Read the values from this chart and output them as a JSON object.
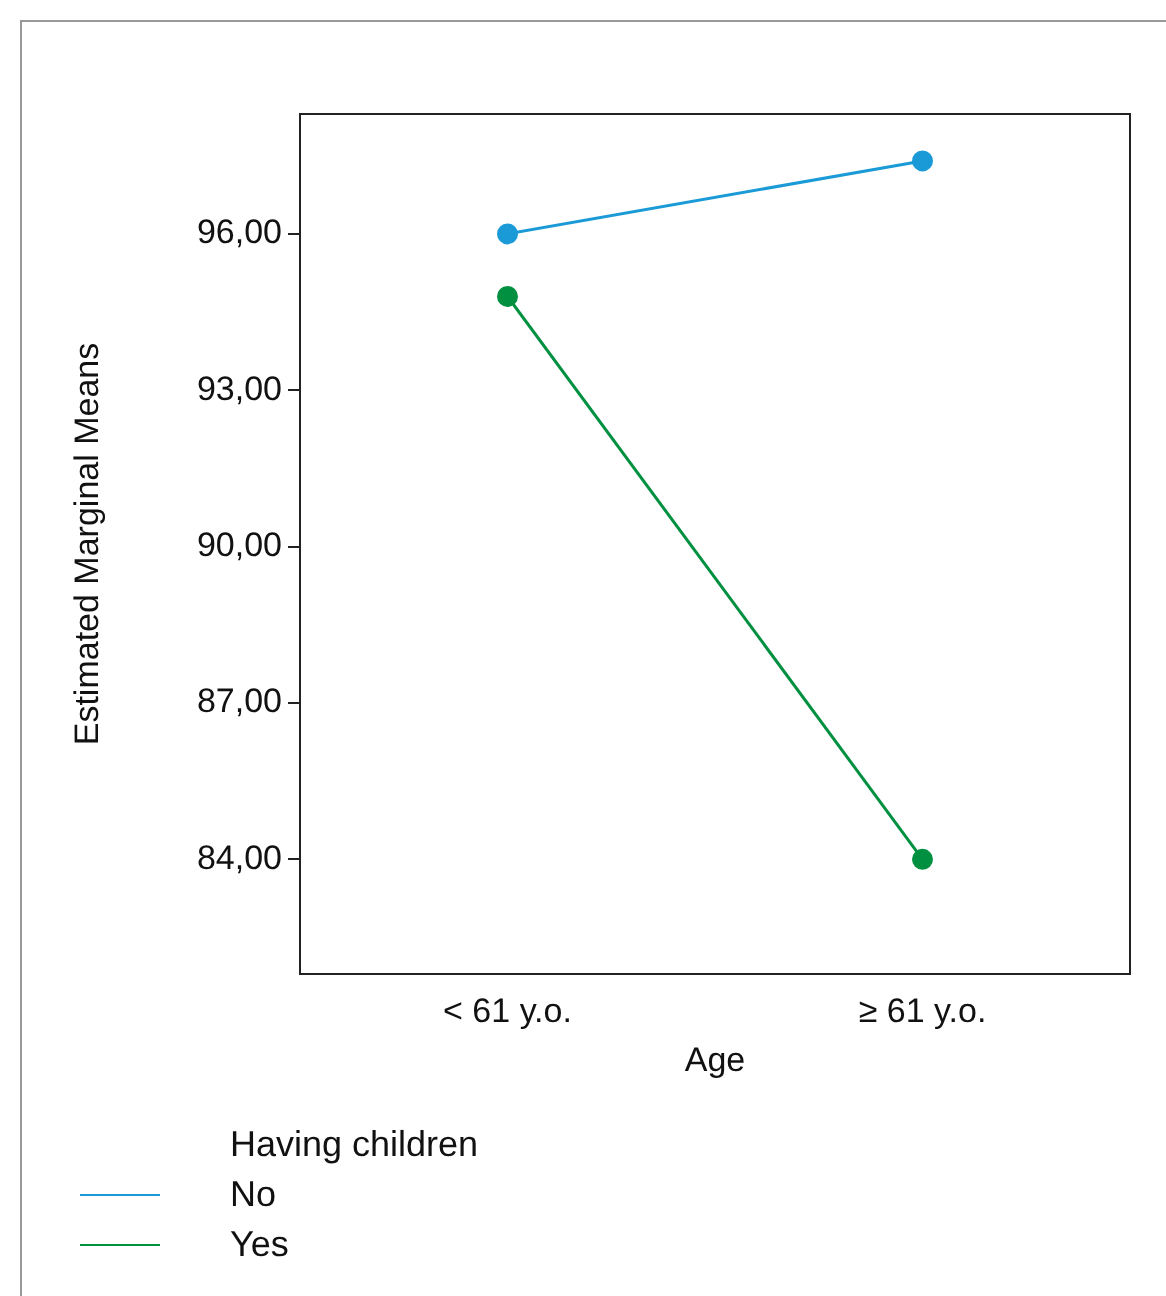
{
  "chart_data": {
    "type": "line",
    "xlabel": "Age",
    "ylabel": "Estimated Marginal Means",
    "legend_title": "Having children",
    "legend": "bottom left",
    "marker": "circle",
    "grid": false,
    "categories": [
      "< 61 y.o.",
      "≥ 61 y.o."
    ],
    "ylim": [
      81.8,
      98.3
    ],
    "yticks": [
      {
        "value": 84,
        "label": "84,00"
      },
      {
        "value": 87,
        "label": "87,00"
      },
      {
        "value": 90,
        "label": "90,00"
      },
      {
        "value": 93,
        "label": "93,00"
      },
      {
        "value": 96,
        "label": "96,00"
      }
    ],
    "series": [
      {
        "name": "No",
        "color": "#1a9ad6",
        "values": [
          96.0,
          97.4
        ]
      },
      {
        "name": "Yes",
        "color": "#009040",
        "values": [
          94.8,
          84.0
        ]
      }
    ]
  }
}
